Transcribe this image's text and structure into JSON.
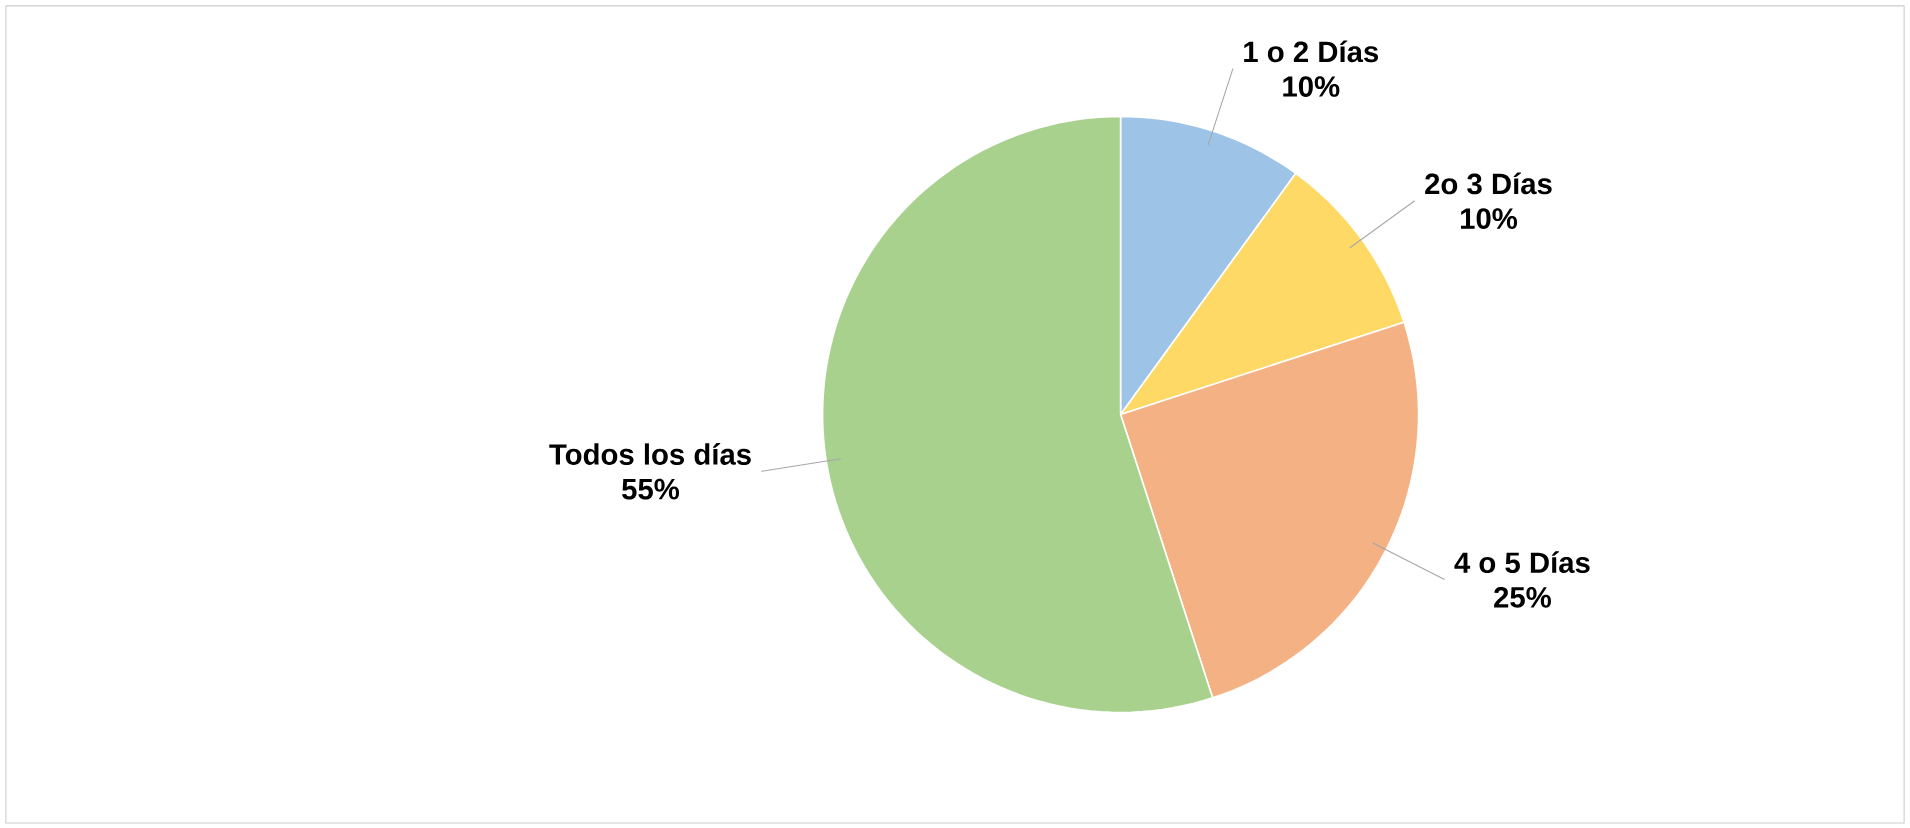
{
  "chart_data": {
    "type": "pie",
    "categories": [
      "1 o 2 Días",
      "2o 3 Días",
      "4 o 5 Días",
      "Todos los días"
    ],
    "values": [
      10,
      10,
      25,
      55
    ],
    "value_labels": [
      "10%",
      "10%",
      "25%",
      "55%"
    ],
    "colors": [
      "#9dc3e6",
      "#ffd966",
      "#f4b183",
      "#a9d18e"
    ]
  }
}
